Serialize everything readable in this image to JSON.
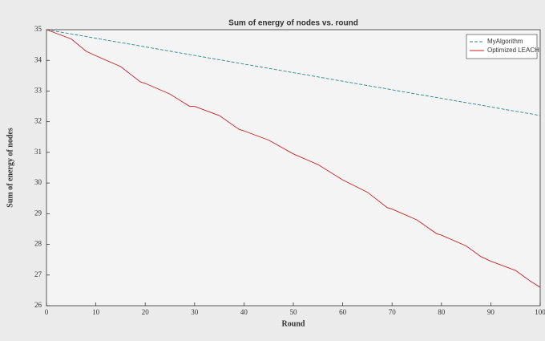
{
  "chart_data": {
    "type": "line",
    "title": "Sum of energy of nodes vs. round",
    "xlabel": "Round",
    "ylabel": "Sum of energy of nodes",
    "x": [
      0,
      5,
      8,
      10,
      15,
      19,
      20,
      25,
      29,
      30,
      35,
      39,
      40,
      45,
      50,
      55,
      60,
      65,
      69,
      70,
      75,
      79,
      80,
      85,
      88,
      90,
      95,
      98,
      100
    ],
    "series": [
      {
        "name": "MyAlgorithm",
        "color": "#2a8a8a",
        "dash": true,
        "values": [
          35,
          34.86,
          34.78,
          34.72,
          34.58,
          34.47,
          34.44,
          34.3,
          34.19,
          34.16,
          34.02,
          33.91,
          33.88,
          33.74,
          33.6,
          33.46,
          33.32,
          33.18,
          33.07,
          33.04,
          32.9,
          32.79,
          32.76,
          32.62,
          32.54,
          32.48,
          32.34,
          32.26,
          32.2
        ]
      },
      {
        "name": "Optimized LEACH",
        "color": "#cc2222",
        "dash": false,
        "values": [
          35,
          34.7,
          34.3,
          34.15,
          33.8,
          33.3,
          33.25,
          32.9,
          32.5,
          32.5,
          32.2,
          31.75,
          31.7,
          31.4,
          30.95,
          30.6,
          30.1,
          29.7,
          29.2,
          29.15,
          28.8,
          28.35,
          28.3,
          27.95,
          27.6,
          27.45,
          27.15,
          26.8,
          26.6
        ]
      }
    ],
    "xlim": [
      0,
      100
    ],
    "xticks": [
      0,
      10,
      20,
      30,
      40,
      50,
      60,
      70,
      80,
      90,
      100
    ],
    "ylim": [
      26,
      35
    ],
    "yticks": [
      26,
      27,
      28,
      29,
      30,
      31,
      32,
      33,
      34,
      35
    ],
    "legend": "top-right"
  }
}
